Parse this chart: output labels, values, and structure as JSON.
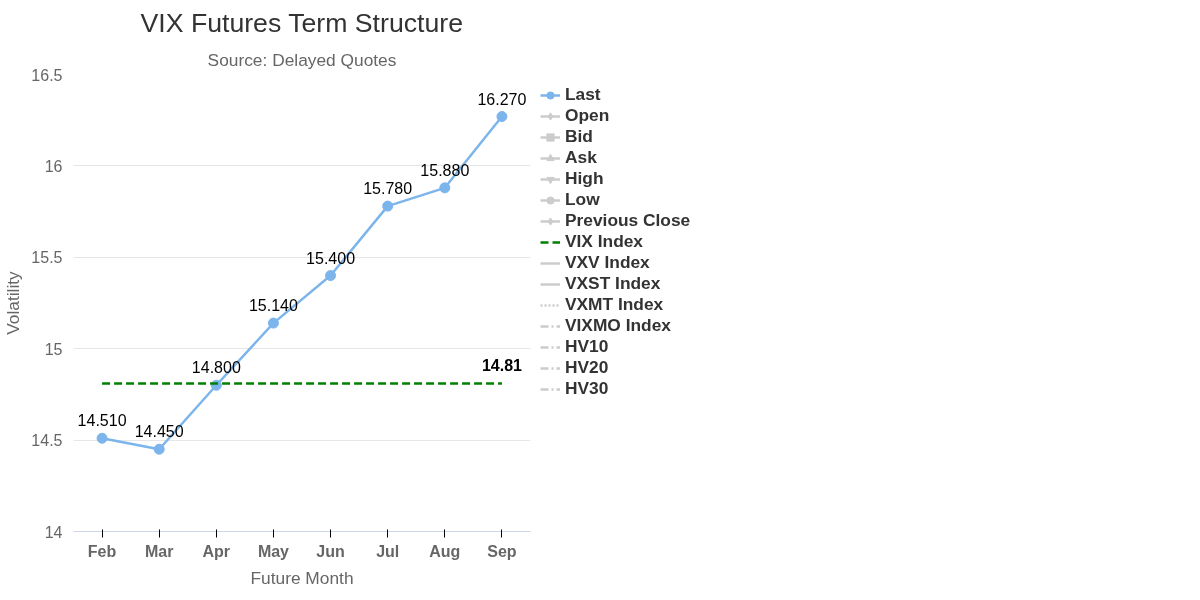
{
  "chart_data": {
    "type": "line",
    "title": "VIX Futures Term Structure",
    "subtitle": "Source: Delayed Quotes",
    "xlabel": "Future Month",
    "ylabel": "Volatility",
    "categories": [
      "Feb",
      "Mar",
      "Apr",
      "May",
      "Jun",
      "Jul",
      "Aug",
      "Sep"
    ],
    "series": [
      {
        "name": "Last",
        "color": "#7cb5ec",
        "marker": "circle",
        "line_style": "solid",
        "values": [
          14.51,
          14.45,
          14.8,
          15.14,
          15.4,
          15.78,
          15.88,
          16.27
        ],
        "value_labels": [
          "14.510",
          "14.450",
          "14.800",
          "15.140",
          "15.400",
          "15.780",
          "15.880",
          "16.270"
        ]
      },
      {
        "name": "Open",
        "color": "#cccccc",
        "marker": "diamond",
        "line_style": "solid",
        "values": [
          null,
          null,
          null,
          null,
          null,
          null,
          null,
          null
        ]
      },
      {
        "name": "Bid",
        "color": "#cccccc",
        "marker": "square",
        "line_style": "solid",
        "values": [
          null,
          null,
          null,
          null,
          null,
          null,
          null,
          null
        ]
      },
      {
        "name": "Ask",
        "color": "#cccccc",
        "marker": "triangle",
        "line_style": "solid",
        "values": [
          null,
          null,
          null,
          null,
          null,
          null,
          null,
          null
        ]
      },
      {
        "name": "High",
        "color": "#cccccc",
        "marker": "inverted_triangle",
        "line_style": "solid",
        "values": [
          null,
          null,
          null,
          null,
          null,
          null,
          null,
          null
        ]
      },
      {
        "name": "Low",
        "color": "#cccccc",
        "marker": "circle",
        "line_style": "solid",
        "values": [
          null,
          null,
          null,
          null,
          null,
          null,
          null,
          null
        ]
      },
      {
        "name": "Previous Close",
        "color": "#cccccc",
        "marker": "diamond",
        "line_style": "solid",
        "values": [
          null,
          null,
          null,
          null,
          null,
          null,
          null,
          null
        ]
      },
      {
        "name": "VIX Index",
        "color": "#008000",
        "marker": "none",
        "line_style": "dashed",
        "values": [
          14.81,
          14.81,
          14.81,
          14.81,
          14.81,
          14.81,
          14.81,
          14.81
        ],
        "value_labels": [
          null,
          null,
          null,
          null,
          null,
          null,
          null,
          "14.81"
        ]
      },
      {
        "name": "VXV Index",
        "color": "#cccccc",
        "marker": "none",
        "line_style": "solid",
        "values": [
          null,
          null,
          null,
          null,
          null,
          null,
          null,
          null
        ]
      },
      {
        "name": "VXST Index",
        "color": "#cccccc",
        "marker": "none",
        "line_style": "solid",
        "values": [
          null,
          null,
          null,
          null,
          null,
          null,
          null,
          null
        ]
      },
      {
        "name": "VXMT Index",
        "color": "#cccccc",
        "marker": "none",
        "line_style": "dotted",
        "values": [
          null,
          null,
          null,
          null,
          null,
          null,
          null,
          null
        ]
      },
      {
        "name": "VIXMO Index",
        "color": "#cccccc",
        "marker": "none",
        "line_style": "dashdot",
        "values": [
          null,
          null,
          null,
          null,
          null,
          null,
          null,
          null
        ]
      },
      {
        "name": "HV10",
        "color": "#cccccc",
        "marker": "none",
        "line_style": "dashdot",
        "values": [
          null,
          null,
          null,
          null,
          null,
          null,
          null,
          null
        ]
      },
      {
        "name": "HV20",
        "color": "#cccccc",
        "marker": "none",
        "line_style": "dashdot",
        "values": [
          null,
          null,
          null,
          null,
          null,
          null,
          null,
          null
        ]
      },
      {
        "name": "HV30",
        "color": "#cccccc",
        "marker": "none",
        "line_style": "dashdot",
        "values": [
          null,
          null,
          null,
          null,
          null,
          null,
          null,
          null
        ]
      }
    ],
    "ylim": [
      14,
      16.5
    ],
    "yticks": [
      14,
      14.5,
      15,
      15.5,
      16,
      16.5
    ],
    "grid": "y",
    "legend": "right"
  }
}
